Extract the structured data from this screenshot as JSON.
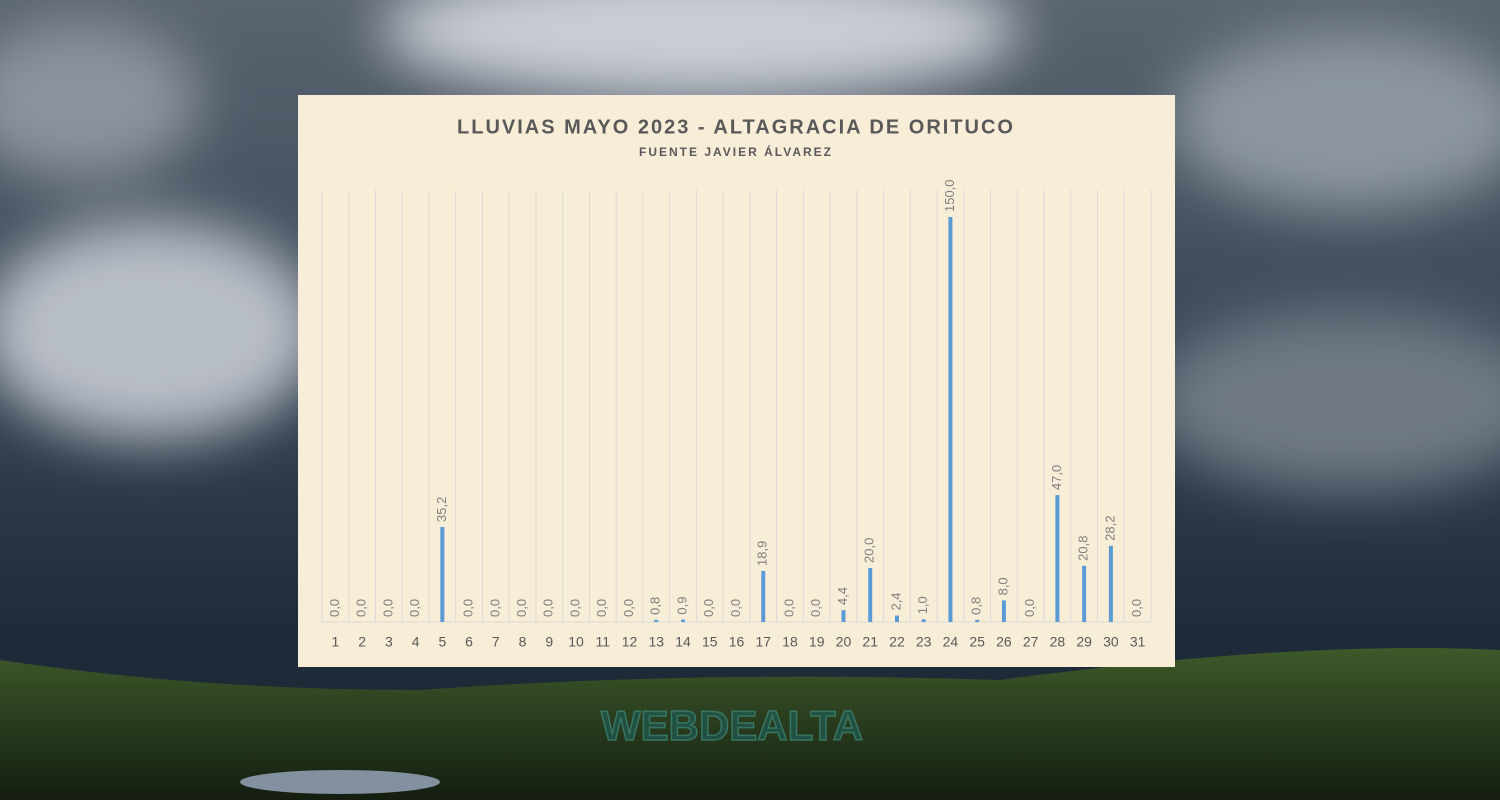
{
  "chart_data": {
    "type": "bar",
    "title": "LLUVIAS MAYO 2023 - ALTAGRACIA DE ORITUCO",
    "subtitle": "FUENTE JAVIER ÁLVAREZ",
    "categories": [
      "1",
      "2",
      "3",
      "4",
      "5",
      "6",
      "7",
      "8",
      "9",
      "10",
      "11",
      "12",
      "13",
      "14",
      "15",
      "16",
      "17",
      "18",
      "19",
      "20",
      "21",
      "22",
      "23",
      "24",
      "25",
      "26",
      "27",
      "28",
      "29",
      "30",
      "31"
    ],
    "values": [
      0,
      0,
      0,
      0,
      35.2,
      0,
      0,
      0,
      0,
      0,
      0,
      0,
      0.8,
      0.9,
      0,
      0,
      18.9,
      0,
      0,
      4.4,
      20,
      2.4,
      1,
      150,
      0.8,
      8,
      0,
      47,
      20.8,
      28.2,
      0
    ],
    "value_labels": [
      "0,0",
      "0,0",
      "0,0",
      "0,0",
      "35,2",
      "0,0",
      "0,0",
      "0,0",
      "0,0",
      "0,0",
      "0,0",
      "0,0",
      "0,8",
      "0,9",
      "0,0",
      "0,0",
      "18,9",
      "0,0",
      "0,0",
      "4,4",
      "20,0",
      "2,4",
      "1,0",
      "150,0",
      "0,8",
      "8,0",
      "0,0",
      "47,0",
      "20,8",
      "28,2",
      "0,0"
    ],
    "color": "#5b9bd5",
    "ylim": [
      0,
      160
    ],
    "grid": true
  },
  "watermark": "WEBDEALTA"
}
